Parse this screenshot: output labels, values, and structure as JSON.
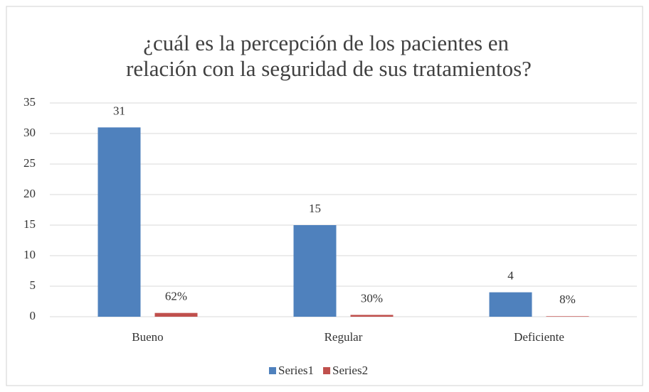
{
  "chart_data": {
    "type": "bar",
    "title": [
      "¿cuál es la percepción de los pacientes en",
      "relación con la seguridad de sus tratamientos?"
    ],
    "categories": [
      "Bueno",
      "Regular",
      "Deficiente"
    ],
    "series": [
      {
        "name": "Series1",
        "color": "#4f81bd",
        "values": [
          31,
          15,
          4
        ]
      },
      {
        "name": "Series2",
        "color": "#c0504d",
        "values": [
          0.62,
          0.3,
          0.08
        ],
        "value_labels": [
          "62%",
          "30%",
          "8%"
        ]
      }
    ],
    "ylim": [
      0,
      35
    ],
    "yticks": [
      0,
      5,
      10,
      15,
      20,
      25,
      30,
      35
    ],
    "grid": true,
    "legend": "bottom"
  }
}
